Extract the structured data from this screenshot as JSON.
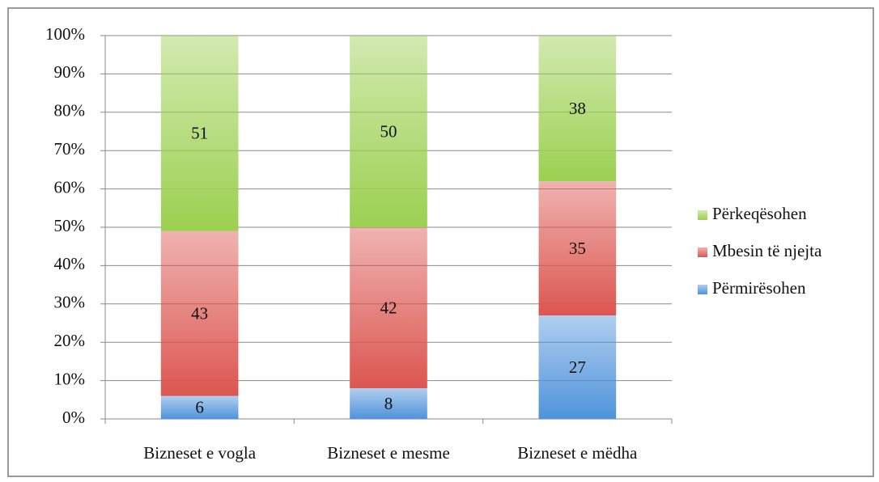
{
  "chart_data": {
    "type": "stacked_bar",
    "categories": [
      "Bizneset e vogla",
      "Bizneset e mesme",
      "Bizneset e mëdha"
    ],
    "series": [
      {
        "name": "Përmirësohen",
        "color": "#4f93db",
        "values": [
          6,
          8,
          27
        ]
      },
      {
        "name": "Mbesin të njejta",
        "color": "#dc5650",
        "values": [
          43,
          42,
          35
        ]
      },
      {
        "name": "Përkeqësohen",
        "color": "#9bd050",
        "values": [
          51,
          50,
          38
        ]
      }
    ],
    "ylim": [
      0,
      100
    ],
    "yticks": [
      {
        "value": 0,
        "label": "0%"
      },
      {
        "value": 10,
        "label": "10%"
      },
      {
        "value": 20,
        "label": "20%"
      },
      {
        "value": 30,
        "label": "30%"
      },
      {
        "value": 40,
        "label": "40%"
      },
      {
        "value": 50,
        "label": "50%"
      },
      {
        "value": 60,
        "label": "60%"
      },
      {
        "value": 70,
        "label": "70%"
      },
      {
        "value": 80,
        "label": "80%"
      },
      {
        "value": 90,
        "label": "90%"
      },
      {
        "value": 100,
        "label": "100%"
      }
    ],
    "grid": true,
    "legend": "right"
  }
}
